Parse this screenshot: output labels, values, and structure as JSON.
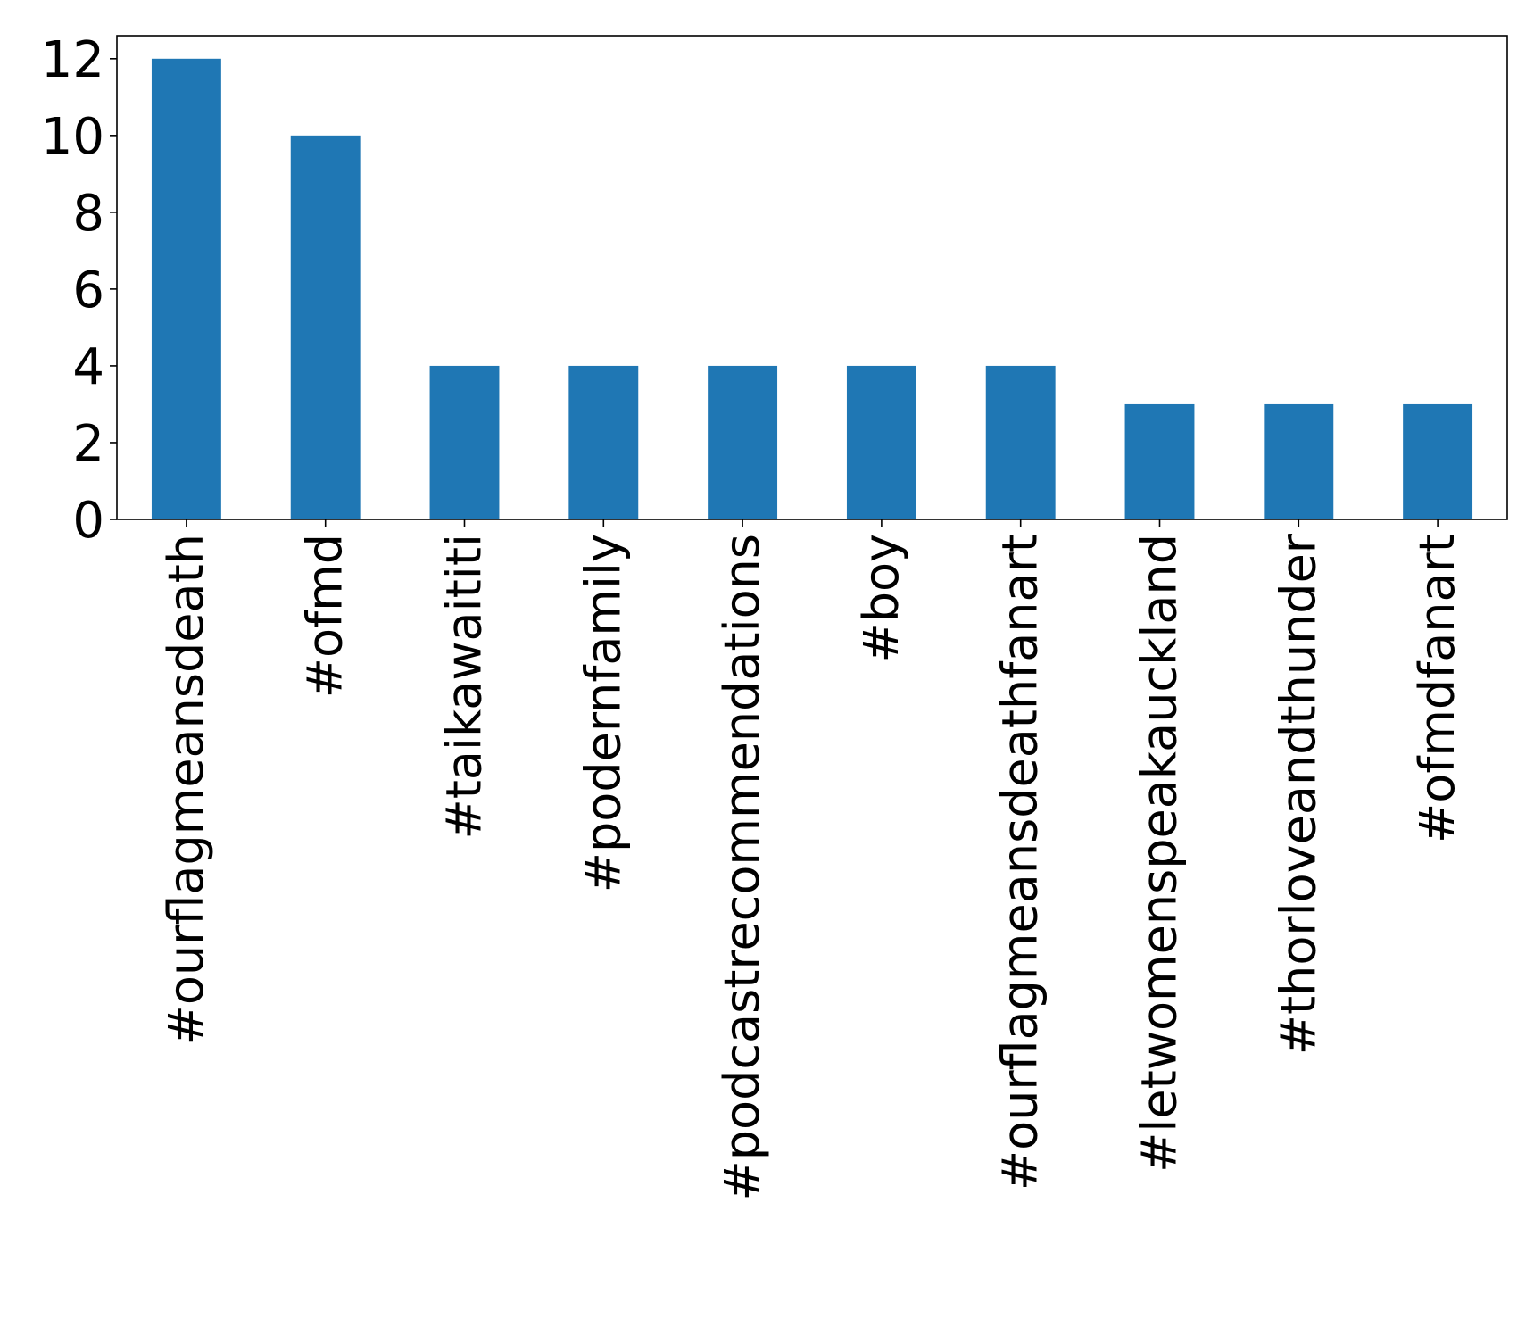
{
  "chart_data": {
    "type": "bar",
    "title": "",
    "xlabel": "",
    "ylabel": "",
    "categories": [
      "#ourflagmeansdeath",
      "#ofmd",
      "#taikawaititi",
      "#podernfamily",
      "#podcastrecommendations",
      "#boy",
      "#ourflagmeansdeathfanart",
      "#letwomenspeakauckland",
      "#thorloveandthunder",
      "#ofmdfanart"
    ],
    "values": [
      12,
      10,
      4,
      4,
      4,
      4,
      4,
      3,
      3,
      3
    ],
    "ylim": [
      0,
      12.6
    ],
    "yticks": [
      0,
      2,
      4,
      6,
      8,
      10,
      12
    ],
    "bar_color": "#1f77b4",
    "grid": false,
    "legend": "none"
  }
}
